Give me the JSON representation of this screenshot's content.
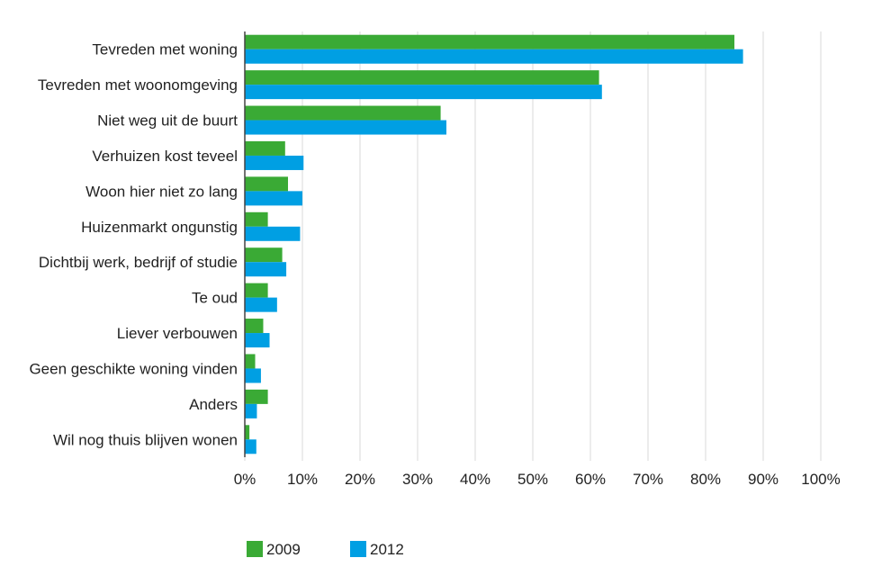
{
  "chart_data": {
    "type": "bar",
    "orientation": "horizontal",
    "title": "",
    "xlabel": "",
    "ylabel": "",
    "categories": [
      "Tevreden met woning",
      "Tevreden met woonomgeving",
      "Niet weg uit de buurt",
      "Verhuizen kost teveel",
      "Woon hier niet zo lang",
      "Huizenmarkt ongunstig",
      "Dichtbij werk, bedrijf of studie",
      "Te oud",
      "Liever verbouwen",
      "Geen geschikte woning vinden",
      "Anders",
      "Wil nog thuis blijven wonen"
    ],
    "series": [
      {
        "name": "2009",
        "color": "#3aaa35",
        "values": [
          85,
          61.5,
          34,
          7,
          7.5,
          4,
          6.5,
          4,
          3.2,
          1.8,
          4,
          0.8
        ]
      },
      {
        "name": "2012",
        "color": "#009fe3",
        "values": [
          86.5,
          62,
          35,
          10.2,
          10,
          9.6,
          7.2,
          5.6,
          4.3,
          2.8,
          2.1,
          2
        ]
      }
    ],
    "xlim": [
      0,
      100
    ],
    "xticks": [
      "0%",
      "10%",
      "20%",
      "30%",
      "40%",
      "50%",
      "60%",
      "70%",
      "80%",
      "90%",
      "100%"
    ],
    "grid": true,
    "legend": "bottom-left"
  }
}
